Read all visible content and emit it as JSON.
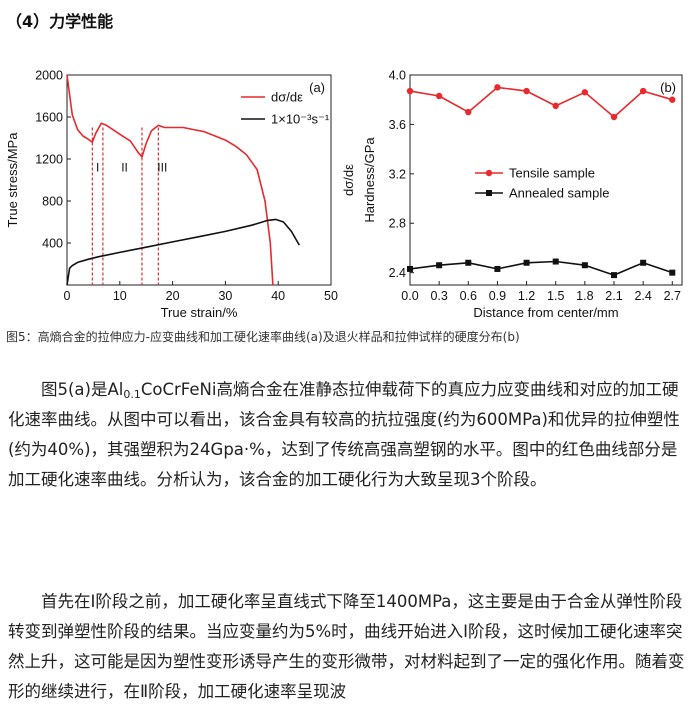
{
  "section_heading": "（4）力学性能",
  "figure_caption": "图5：高熵合金的拉伸应力-应变曲线和加工硬化速率曲线(a)及退火样品和拉伸试样的硬度分布(b)",
  "paragraph1": {
    "lead": "图5(a)是",
    "alloy_main": "Al",
    "alloy_sub": "0.1",
    "alloy_rest": "CoCrFeNi",
    "text": "高熵合金在准静态拉伸载荷下的真应力应变曲线和对应的加工硬化速率曲线。从图中可以看出，该合金具有较高的抗拉强度(约为600MPa)和优异的拉伸塑性(约为40%)，其强塑积为24Gpa·%，达到了传统高强高塑钢的水平。图中的红色曲线部分是加工硬化速率曲线。分析认为，该合金的加工硬化行为大致呈现3个阶段。"
  },
  "paragraph2": "首先在Ⅰ阶段之前，加工硬化率呈直线式下降至1400MPa，这主要是由于合金从弹性阶段转变到弹塑性阶段的结果。当应变量约为5%时，曲线开始进入Ⅰ阶段，这时候加工硬化速率突然上升，这可能是因为塑性变形诱导产生的变形微带，对材料起到了一定的强化作用。随着变形的继续进行，在Ⅱ阶段，加工硬化速率呈现波",
  "chart_data": [
    {
      "type": "line",
      "panel_label": "(a)",
      "xlabel": "True strain/%",
      "ylabel": "True stress/MPa",
      "ylabel_right": "dσ/dε",
      "xlim": [
        0,
        50
      ],
      "ylim": [
        0,
        2000
      ],
      "x_ticks": [
        0,
        10,
        20,
        30,
        40,
        50
      ],
      "y_ticks": [
        400,
        800,
        1200,
        1600,
        2000
      ],
      "legend_position": "top-right",
      "stage_labels": [
        "I",
        "II",
        "III"
      ],
      "stage_boundaries_x": [
        4.8,
        6.8,
        14.2,
        17.3
      ],
      "series": [
        {
          "name": "dσ/dε",
          "color": "#e8292d",
          "x": [
            0,
            1,
            2,
            3,
            4,
            4.8,
            5.5,
            6.5,
            7.5,
            9,
            10.5,
            12,
            13.5,
            14.2,
            15,
            16,
            17.3,
            18.5,
            20,
            22,
            24,
            26,
            28,
            30,
            32,
            34,
            36,
            37.5,
            38.5,
            39
          ],
          "y": [
            2000,
            1620,
            1480,
            1420,
            1390,
            1360,
            1450,
            1540,
            1520,
            1470,
            1420,
            1370,
            1260,
            1220,
            1350,
            1470,
            1520,
            1500,
            1500,
            1500,
            1480,
            1460,
            1420,
            1380,
            1320,
            1240,
            1100,
            800,
            400,
            0
          ]
        },
        {
          "name": "1×10⁻³s⁻¹",
          "color": "#111111",
          "x": [
            0,
            0.5,
            1,
            2,
            4,
            6,
            10,
            15,
            20,
            25,
            30,
            35,
            38,
            39.5,
            41,
            42.5,
            44
          ],
          "y": [
            0,
            160,
            185,
            215,
            245,
            270,
            310,
            360,
            410,
            460,
            510,
            570,
            615,
            625,
            600,
            510,
            380
          ]
        }
      ]
    },
    {
      "type": "line",
      "panel_label": "(b)",
      "xlabel": "Distance from center/mm",
      "ylabel": "Hardness/GPa",
      "xlim": [
        0,
        2.8
      ],
      "ylim": [
        2.3,
        4.0
      ],
      "x_ticks": [
        0.0,
        0.3,
        0.6,
        0.9,
        1.2,
        1.5,
        1.8,
        2.1,
        2.4,
        2.7
      ],
      "y_ticks": [
        2.4,
        2.8,
        3.2,
        3.6,
        4.0
      ],
      "legend_position": "center-left",
      "series": [
        {
          "name": "Tensile sample",
          "color": "#e8292d",
          "marker": "circle",
          "x": [
            0.0,
            0.3,
            0.6,
            0.9,
            1.2,
            1.5,
            1.8,
            2.1,
            2.4,
            2.7
          ],
          "y": [
            3.87,
            3.83,
            3.7,
            3.9,
            3.87,
            3.75,
            3.86,
            3.66,
            3.87,
            3.8
          ]
        },
        {
          "name": "Annealed sample",
          "color": "#111111",
          "marker": "square",
          "x": [
            0.0,
            0.3,
            0.6,
            0.9,
            1.2,
            1.5,
            1.8,
            2.1,
            2.4,
            2.7
          ],
          "y": [
            2.43,
            2.46,
            2.48,
            2.43,
            2.48,
            2.49,
            2.46,
            2.38,
            2.48,
            2.4
          ]
        }
      ]
    }
  ]
}
